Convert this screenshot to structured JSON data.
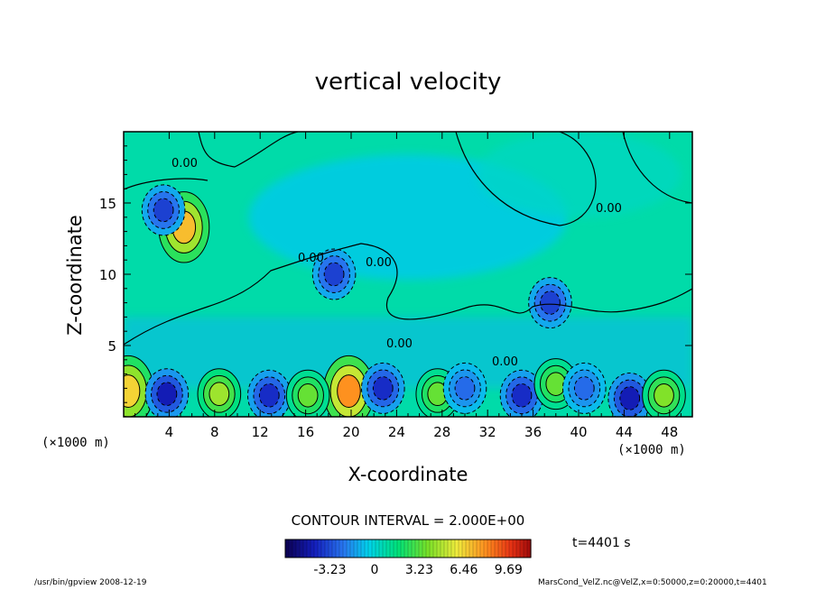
{
  "chart_data": {
    "type": "heatmap",
    "title": "vertical velocity",
    "xlabel": "X-coordinate",
    "ylabel": "Z-coordinate",
    "x_unit": "(×1000 m)",
    "x_ticks": [
      4,
      8,
      12,
      16,
      20,
      24,
      28,
      32,
      36,
      40,
      44,
      48
    ],
    "y_ticks": [
      5,
      10,
      15
    ],
    "xlim": [
      0,
      50
    ],
    "ylim": [
      0,
      20
    ],
    "contour_interval_text": "CONTOUR INTERVAL = 2.000E+00",
    "contour_labels": [
      "0.00",
      "0.00",
      "0.00",
      "0.00",
      "0.00",
      "0.00"
    ],
    "colorbar": {
      "ticks": [
        "-3.23",
        "0",
        "3.23",
        "6.46",
        "9.69"
      ],
      "tick_values": [
        -3.23,
        0,
        3.23,
        6.46,
        9.69
      ],
      "range": [
        -6.46,
        11.3
      ]
    },
    "time_label": "t=4401 s",
    "features": [
      {
        "x": 0.4,
        "z": 1.8,
        "w": 6.5
      },
      {
        "x": 19.8,
        "z": 1.8,
        "w": 8.0
      },
      {
        "x": 5.3,
        "z": 13.3,
        "w": 7.0
      },
      {
        "x": 3.8,
        "z": 1.6,
        "w": -4.5
      },
      {
        "x": 8.4,
        "z": 1.6,
        "w": 4.5
      },
      {
        "x": 12.8,
        "z": 1.5,
        "w": -4.0
      },
      {
        "x": 16.2,
        "z": 1.5,
        "w": 3.5
      },
      {
        "x": 22.8,
        "z": 2.0,
        "w": -4.0
      },
      {
        "x": 27.6,
        "z": 1.6,
        "w": 3.5
      },
      {
        "x": 30.0,
        "z": 2.0,
        "w": -2.5
      },
      {
        "x": 35.0,
        "z": 1.5,
        "w": -4.0
      },
      {
        "x": 38.0,
        "z": 2.3,
        "w": 3.5
      },
      {
        "x": 40.5,
        "z": 2.0,
        "w": -2.5
      },
      {
        "x": 44.5,
        "z": 1.3,
        "w": -4.5
      },
      {
        "x": 47.5,
        "z": 1.5,
        "w": 4.0
      },
      {
        "x": 3.5,
        "z": 14.5,
        "w": -3.5
      },
      {
        "x": 18.5,
        "z": 10.0,
        "w": -3.5
      },
      {
        "x": 37.5,
        "z": 8.0,
        "w": -3.5
      }
    ]
  },
  "footer": {
    "left": "/usr/bin/gpview  2008-12-19",
    "right": "MarsCond_VelZ.nc@VelZ,x=0:50000,z=0:20000,t=4401"
  }
}
